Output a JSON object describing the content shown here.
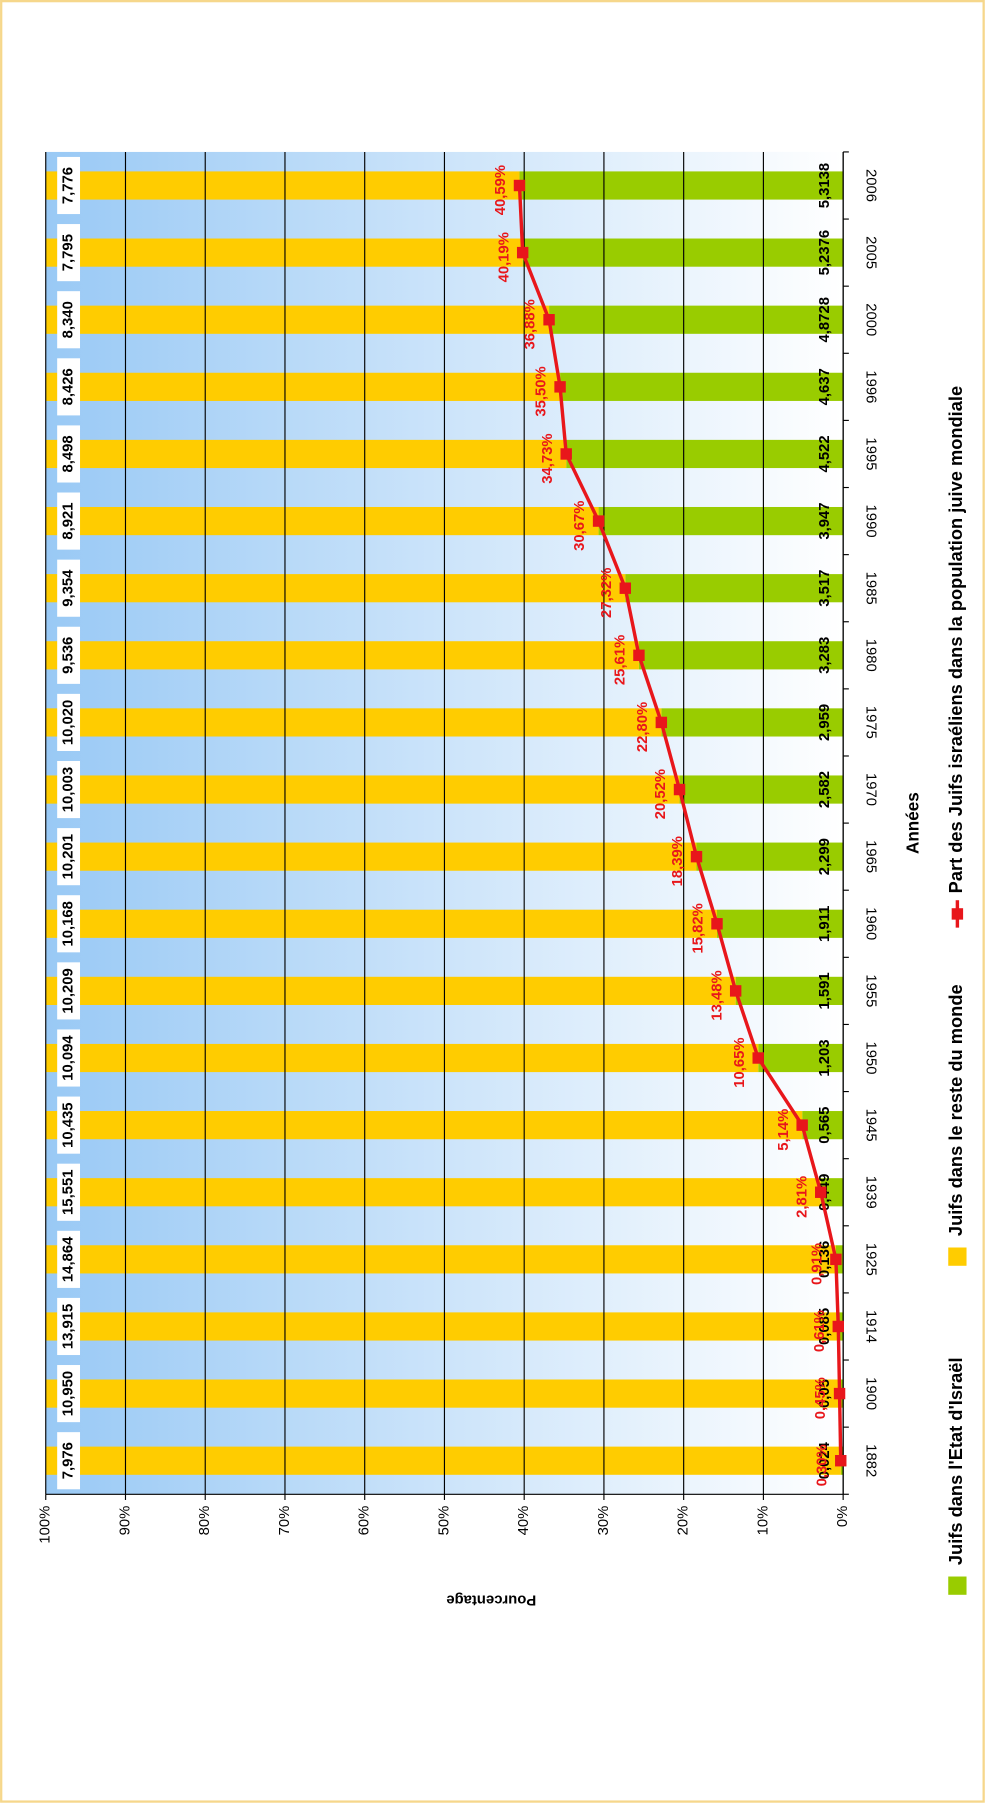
{
  "chart_data": {
    "type": "bar",
    "stacking": "percent",
    "x_label": "Années",
    "y_label": "Pourcentage",
    "categories": [
      "1882",
      "1900",
      "1914",
      "1925",
      "1939",
      "1945",
      "1950",
      "1955",
      "1960",
      "1965",
      "1970",
      "1975",
      "1980",
      "1985",
      "1990",
      "1995",
      "1996",
      "2000",
      "2005",
      "2006"
    ],
    "ylim": [
      0,
      100
    ],
    "yticks": [
      {
        "value": 0,
        "label": "0%"
      },
      {
        "value": 10,
        "label": "10%"
      },
      {
        "value": 20,
        "label": "20%"
      },
      {
        "value": 30,
        "label": "30%"
      },
      {
        "value": 40,
        "label": "40%"
      },
      {
        "value": 50,
        "label": "50%"
      },
      {
        "value": 60,
        "label": "60%"
      },
      {
        "value": 70,
        "label": "70%"
      },
      {
        "value": 80,
        "label": "80%"
      },
      {
        "value": 90,
        "label": "90%"
      },
      {
        "value": 100,
        "label": "100%"
      }
    ],
    "grid": true,
    "series": [
      {
        "name": "Juifs dans l'Etat d'Israël",
        "color": "#99cc00",
        "type": "bar",
        "values": [
          0.024,
          0.05,
          0.085,
          0.136,
          0.449,
          0.565,
          1.203,
          1.591,
          1.911,
          2.299,
          2.582,
          2.959,
          3.283,
          3.517,
          3.947,
          4.522,
          4.637,
          4.8728,
          5.2376,
          5.3138
        ],
        "value_labels": [
          "0,024",
          "0,05",
          "0,085",
          "0,136",
          "0,449",
          "0,565",
          "1,203",
          "1,591",
          "1,911",
          "2,299",
          "2,582",
          "2,959",
          "3,283",
          "3,517",
          "3,947",
          "4,522",
          "4,637",
          "4,8728",
          "5,2376",
          "5,3138"
        ]
      },
      {
        "name": "Juifs dans le reste du monde",
        "color": "#ffcc00",
        "type": "bar",
        "values": [
          7.976,
          10.95,
          13.915,
          14.864,
          15.551,
          10.435,
          10.094,
          10.209,
          10.168,
          10.201,
          10.003,
          10.02,
          9.536,
          9.354,
          8.921,
          8.498,
          8.426,
          8.34,
          7.795,
          7.776
        ],
        "value_labels": [
          "7,976",
          "10,950",
          "13,915",
          "14,864",
          "15,551",
          "10,435",
          "10,094",
          "10,209",
          "10,168",
          "10,201",
          "10,003",
          "10,020",
          "9,536",
          "9,354",
          "8,921",
          "8,498",
          "8,426",
          "8,340",
          "7,795",
          "7,776"
        ]
      },
      {
        "name": "Part des Juifs israéliens dans la population juive mondiale",
        "color": "#e8161b",
        "type": "line",
        "values": [
          0.3,
          0.45,
          0.61,
          0.91,
          2.81,
          5.14,
          10.65,
          13.48,
          15.82,
          18.39,
          20.52,
          22.8,
          25.61,
          27.32,
          30.67,
          34.73,
          35.5,
          36.88,
          40.19,
          40.59
        ],
        "value_labels": [
          "0,30%",
          "0,45%",
          "0,61%",
          "0,91%",
          "2,81%",
          "5,14%",
          "10,65%",
          "13,48%",
          "15,82%",
          "18,39%",
          "20,52%",
          "22,80%",
          "25,61%",
          "27,32%",
          "30,67%",
          "34,73%",
          "35,50%",
          "36,88%",
          "40,19%",
          "40,59%"
        ]
      }
    ]
  }
}
